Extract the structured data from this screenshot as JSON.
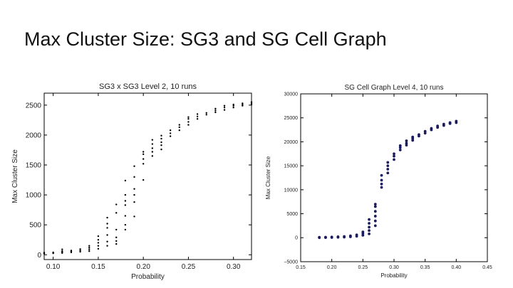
{
  "slide": {
    "title": "Max Cluster Size: SG3 and SG Cell Graph"
  },
  "chart_data": [
    {
      "type": "scatter",
      "title": "SG3 x SG3 Level 2, 10 runs",
      "xlabel": "Probability",
      "ylabel": "Max Cluster Size",
      "xlim": [
        0.09,
        0.32
      ],
      "ylim": [
        -80,
        2700
      ],
      "xticks": [
        0.1,
        0.15,
        0.2,
        0.25,
        0.3
      ],
      "xtick_labels": [
        "0.10",
        "0.15",
        "0.20",
        "0.25",
        "0.30"
      ],
      "yticks": [
        0,
        500,
        1000,
        1500,
        2000,
        2500
      ],
      "ytick_labels": [
        "0",
        "500",
        "1000",
        "1500",
        "2000",
        "2500"
      ],
      "marker_color": "#000000",
      "series": [
        {
          "x": 0.09,
          "y": [
            20,
            28,
            35
          ]
        },
        {
          "x": 0.1,
          "y": [
            25,
            32,
            40
          ]
        },
        {
          "x": 0.11,
          "y": [
            30,
            45,
            60,
            90
          ]
        },
        {
          "x": 0.12,
          "y": [
            40,
            55,
            70
          ]
        },
        {
          "x": 0.13,
          "y": [
            50,
            70,
            95
          ]
        },
        {
          "x": 0.14,
          "y": [
            60,
            90,
            120,
            150
          ]
        },
        {
          "x": 0.15,
          "y": [
            100,
            150,
            200,
            250,
            310
          ]
        },
        {
          "x": 0.16,
          "y": [
            150,
            220,
            330,
            450,
            520,
            620
          ]
        },
        {
          "x": 0.17,
          "y": [
            180,
            230,
            290,
            420,
            700,
            840
          ]
        },
        {
          "x": 0.18,
          "y": [
            420,
            500,
            650,
            830,
            900,
            1000,
            1240
          ]
        },
        {
          "x": 0.19,
          "y": [
            640,
            880,
            1000,
            1100,
            1300,
            1480
          ]
        },
        {
          "x": 0.2,
          "y": [
            1250,
            1520,
            1600,
            1680,
            1720
          ]
        },
        {
          "x": 0.21,
          "y": [
            1650,
            1720,
            1780,
            1850,
            1920
          ]
        },
        {
          "x": 0.22,
          "y": [
            1760,
            1830,
            1880,
            1940,
            1990
          ]
        },
        {
          "x": 0.23,
          "y": [
            1980,
            2030,
            2080
          ]
        },
        {
          "x": 0.24,
          "y": [
            2080,
            2130,
            2170
          ]
        },
        {
          "x": 0.25,
          "y": [
            2170,
            2220,
            2270,
            2300
          ]
        },
        {
          "x": 0.26,
          "y": [
            2270,
            2310,
            2350
          ]
        },
        {
          "x": 0.27,
          "y": [
            2340,
            2370
          ]
        },
        {
          "x": 0.28,
          "y": [
            2380,
            2410,
            2440
          ]
        },
        {
          "x": 0.29,
          "y": [
            2420,
            2460,
            2490
          ]
        },
        {
          "x": 0.3,
          "y": [
            2460,
            2490,
            2510
          ]
        },
        {
          "x": 0.31,
          "y": [
            2490,
            2510,
            2530
          ]
        },
        {
          "x": 0.32,
          "y": [
            2510,
            2530,
            2550
          ]
        }
      ]
    },
    {
      "type": "scatter",
      "title": "SG Cell Graph Level 4, 10 runs",
      "xlabel": "Probability",
      "ylabel": "Max Cluster Size",
      "xlim": [
        0.15,
        0.45
      ],
      "ylim": [
        -5000,
        30000
      ],
      "xticks": [
        0.15,
        0.2,
        0.25,
        0.3,
        0.35,
        0.4,
        0.45
      ],
      "xtick_labels": [
        "0.15",
        "0.20",
        "0.25",
        "0.30",
        "0.35",
        "0.40",
        "0.45"
      ],
      "yticks": [
        -5000,
        0,
        5000,
        10000,
        15000,
        20000,
        25000,
        30000
      ],
      "ytick_labels": [
        "−5000",
        "0",
        "5000",
        "10000",
        "15000",
        "20000",
        "25000",
        "30000"
      ],
      "marker_color": "#1a1a5e",
      "series": [
        {
          "x": 0.18,
          "y": [
            0,
            100
          ]
        },
        {
          "x": 0.19,
          "y": [
            30,
            120
          ]
        },
        {
          "x": 0.2,
          "y": [
            50,
            150
          ]
        },
        {
          "x": 0.21,
          "y": [
            80,
            200
          ]
        },
        {
          "x": 0.22,
          "y": [
            120,
            260
          ]
        },
        {
          "x": 0.23,
          "y": [
            200,
            400
          ]
        },
        {
          "x": 0.24,
          "y": [
            300,
            600
          ]
        },
        {
          "x": 0.25,
          "y": [
            500,
            900,
            1200
          ]
        },
        {
          "x": 0.26,
          "y": [
            800,
            1500,
            2200,
            3000,
            3800
          ]
        },
        {
          "x": 0.27,
          "y": [
            2500,
            3500,
            4500,
            5500,
            6500,
            7000
          ]
        },
        {
          "x": 0.28,
          "y": [
            10500,
            11200,
            12000,
            13000
          ]
        },
        {
          "x": 0.29,
          "y": [
            13500,
            14300,
            15000,
            15700
          ]
        },
        {
          "x": 0.3,
          "y": [
            16300,
            17000,
            17500
          ]
        },
        {
          "x": 0.31,
          "y": [
            18300,
            18800,
            19200
          ]
        },
        {
          "x": 0.32,
          "y": [
            19300,
            19700,
            20200
          ]
        },
        {
          "x": 0.33,
          "y": [
            20300,
            20700,
            21000
          ]
        },
        {
          "x": 0.34,
          "y": [
            21200,
            21500
          ]
        },
        {
          "x": 0.35,
          "y": [
            21800,
            22200
          ]
        },
        {
          "x": 0.36,
          "y": [
            22500,
            22800
          ]
        },
        {
          "x": 0.37,
          "y": [
            23000,
            23300
          ]
        },
        {
          "x": 0.38,
          "y": [
            23400,
            23700
          ]
        },
        {
          "x": 0.39,
          "y": [
            23800,
            24000
          ]
        },
        {
          "x": 0.4,
          "y": [
            24000,
            24300
          ]
        }
      ]
    }
  ]
}
